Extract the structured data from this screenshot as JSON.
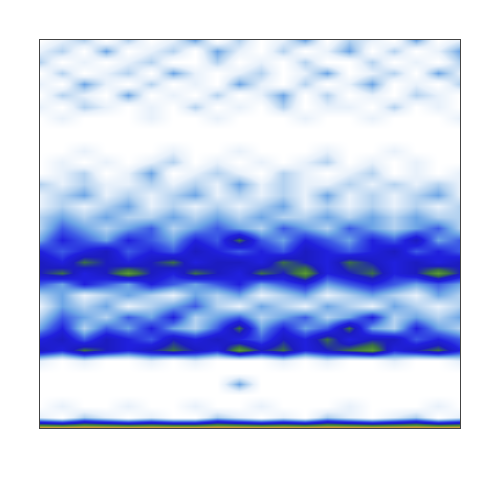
{
  "chart_data": {
    "type": "heatmap",
    "x": [
      0,
      1,
      2,
      3,
      4,
      5,
      6,
      7,
      8,
      9,
      10,
      11,
      12,
      13,
      14,
      15,
      16,
      17,
      18,
      19
    ],
    "y": [
      0,
      1,
      2,
      3,
      4,
      5,
      6,
      7,
      8,
      9,
      10,
      11,
      12,
      13,
      14,
      15,
      16,
      17,
      18,
      19,
      20,
      21,
      22,
      23,
      24,
      25,
      26,
      27,
      28,
      29,
      30,
      31,
      32,
      33,
      34,
      35
    ],
    "xlim": [
      0,
      19
    ],
    "ylim": [
      0,
      35
    ],
    "zlim": [
      0,
      10
    ],
    "z": [
      [
        10,
        10,
        10,
        10,
        10,
        10,
        10,
        10,
        10,
        10,
        10,
        10,
        10,
        10,
        10,
        10,
        10,
        10,
        10,
        10
      ],
      [
        1,
        0,
        2,
        1,
        0,
        1,
        0,
        0,
        2,
        1,
        0,
        1,
        0,
        2,
        1,
        0,
        1,
        2,
        0,
        1
      ],
      [
        0,
        1,
        0,
        0,
        1,
        0,
        0,
        1,
        0,
        0,
        1,
        0,
        0,
        0,
        1,
        0,
        0,
        0,
        1,
        0
      ],
      [
        0,
        0,
        0,
        0,
        0,
        0,
        0,
        0,
        0,
        0,
        0,
        0,
        0,
        0,
        0,
        0,
        0,
        0,
        0,
        0
      ],
      [
        0,
        0,
        0,
        0,
        0,
        0,
        0,
        0,
        0,
        3,
        0,
        0,
        0,
        0,
        0,
        0,
        0,
        0,
        0,
        0
      ],
      [
        0,
        0,
        0,
        0,
        0,
        0,
        0,
        0,
        0,
        0,
        0,
        0,
        0,
        0,
        0,
        0,
        0,
        0,
        0,
        0
      ],
      [
        1,
        0,
        1,
        0,
        0,
        1,
        0,
        1,
        0,
        0,
        0,
        1,
        0,
        1,
        0,
        0,
        1,
        0,
        0,
        1
      ],
      [
        6,
        5,
        7,
        6,
        5,
        6,
        7,
        6,
        5,
        8,
        6,
        7,
        5,
        6,
        7,
        8,
        5,
        6,
        7,
        5
      ],
      [
        5,
        6,
        4,
        6,
        5,
        4,
        6,
        5,
        6,
        5,
        4,
        6,
        5,
        7,
        5,
        6,
        6,
        4,
        5,
        4
      ],
      [
        3,
        5,
        2,
        4,
        3,
        5,
        3,
        2,
        4,
        7,
        3,
        5,
        3,
        4,
        7,
        3,
        2,
        5,
        3,
        2
      ],
      [
        2,
        4,
        3,
        2,
        4,
        3,
        5,
        2,
        3,
        4,
        2,
        3,
        4,
        2,
        3,
        5,
        2,
        3,
        2,
        3
      ],
      [
        1,
        3,
        2,
        3,
        1,
        2,
        3,
        4,
        2,
        1,
        3,
        2,
        1,
        3,
        2,
        1,
        3,
        2,
        1,
        2
      ],
      [
        2,
        3,
        1,
        2,
        3,
        2,
        1,
        3,
        2,
        3,
        1,
        2,
        3,
        1,
        2,
        3,
        2,
        1,
        3,
        2
      ],
      [
        4,
        3,
        5,
        4,
        3,
        5,
        4,
        3,
        4,
        5,
        3,
        4,
        5,
        3,
        4,
        5,
        4,
        3,
        4,
        3
      ],
      [
        6,
        7,
        5,
        6,
        8,
        6,
        5,
        7,
        6,
        5,
        7,
        6,
        8,
        5,
        6,
        7,
        5,
        6,
        8,
        6
      ],
      [
        6,
        5,
        7,
        6,
        5,
        6,
        7,
        5,
        6,
        6,
        5,
        7,
        6,
        5,
        7,
        6,
        5,
        6,
        5,
        6
      ],
      [
        5,
        4,
        5,
        6,
        4,
        5,
        4,
        6,
        5,
        4,
        5,
        4,
        6,
        5,
        4,
        5,
        6,
        4,
        5,
        4
      ],
      [
        3,
        5,
        4,
        3,
        5,
        4,
        3,
        5,
        4,
        7,
        4,
        3,
        5,
        4,
        3,
        5,
        4,
        6,
        3,
        4
      ],
      [
        2,
        4,
        3,
        2,
        3,
        4,
        2,
        3,
        4,
        3,
        2,
        4,
        3,
        2,
        4,
        3,
        2,
        3,
        4,
        2
      ],
      [
        2,
        3,
        2,
        3,
        2,
        2,
        3,
        2,
        3,
        2,
        3,
        2,
        2,
        3,
        2,
        3,
        2,
        3,
        2,
        2
      ],
      [
        1,
        2,
        1,
        2,
        3,
        1,
        2,
        1,
        2,
        1,
        2,
        3,
        1,
        2,
        1,
        2,
        1,
        2,
        1,
        2
      ],
      [
        1,
        2,
        3,
        1,
        2,
        1,
        2,
        3,
        1,
        2,
        1,
        2,
        1,
        3,
        1,
        2,
        1,
        2,
        3,
        1
      ],
      [
        2,
        1,
        2,
        1,
        1,
        2,
        1,
        2,
        1,
        3,
        1,
        2,
        1,
        1,
        2,
        1,
        2,
        1,
        2,
        1
      ],
      [
        0,
        1,
        2,
        0,
        1,
        3,
        0,
        1,
        2,
        1,
        0,
        2,
        1,
        0,
        1,
        2,
        0,
        1,
        0,
        1
      ],
      [
        0,
        1,
        0,
        1,
        0,
        1,
        2,
        0,
        1,
        0,
        1,
        0,
        1,
        2,
        0,
        1,
        0,
        1,
        0,
        0
      ],
      [
        0,
        0,
        1,
        0,
        0,
        0,
        1,
        0,
        0,
        1,
        0,
        0,
        0,
        1,
        0,
        0,
        1,
        0,
        0,
        0
      ],
      [
        0,
        0,
        0,
        0,
        0,
        0,
        0,
        0,
        0,
        0,
        0,
        0,
        0,
        0,
        0,
        0,
        0,
        0,
        0,
        0
      ],
      [
        0,
        0,
        0,
        0,
        0,
        0,
        0,
        0,
        0,
        0,
        0,
        0,
        0,
        0,
        0,
        0,
        0,
        0,
        0,
        0
      ],
      [
        0,
        1,
        0,
        0,
        0,
        1,
        0,
        0,
        1,
        0,
        0,
        0,
        1,
        0,
        0,
        1,
        0,
        0,
        0,
        1
      ],
      [
        1,
        0,
        2,
        1,
        0,
        1,
        0,
        2,
        0,
        1,
        0,
        2,
        0,
        1,
        1,
        0,
        2,
        0,
        1,
        0
      ],
      [
        0,
        2,
        1,
        0,
        3,
        0,
        1,
        0,
        2,
        0,
        1,
        3,
        0,
        2,
        0,
        1,
        0,
        2,
        1,
        0
      ],
      [
        1,
        0,
        3,
        1,
        0,
        2,
        0,
        1,
        0,
        3,
        1,
        0,
        2,
        0,
        1,
        3,
        0,
        1,
        0,
        2
      ],
      [
        0,
        2,
        0,
        1,
        2,
        0,
        3,
        1,
        0,
        1,
        2,
        0,
        1,
        3,
        0,
        1,
        2,
        0,
        3,
        1
      ],
      [
        2,
        0,
        1,
        0,
        1,
        2,
        0,
        0,
        2,
        0,
        1,
        0,
        2,
        0,
        0,
        2,
        0,
        1,
        0,
        2
      ],
      [
        1,
        2,
        0,
        3,
        0,
        1,
        2,
        0,
        3,
        1,
        0,
        2,
        0,
        1,
        3,
        0,
        2,
        0,
        1,
        3
      ],
      [
        0,
        1,
        2,
        0,
        2,
        0,
        1,
        3,
        0,
        2,
        0,
        1,
        3,
        0,
        2,
        1,
        0,
        3,
        0,
        1
      ]
    ],
    "tick_labels": false,
    "grid": false
  }
}
